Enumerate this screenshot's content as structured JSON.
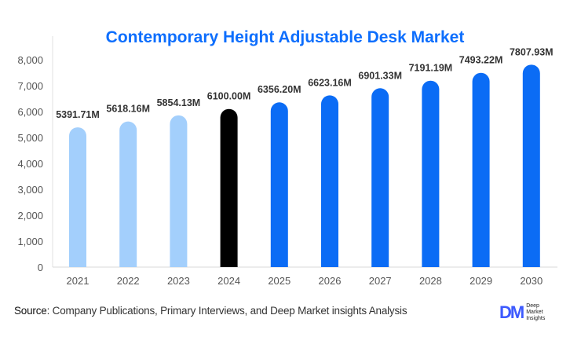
{
  "chart_data": {
    "type": "bar",
    "title": "Contemporary Height Adjustable Desk Market",
    "categories": [
      "2021",
      "2022",
      "2023",
      "2024",
      "2025",
      "2026",
      "2027",
      "2028",
      "2029",
      "2030"
    ],
    "values": [
      5391.71,
      5618.16,
      5854.13,
      6100.0,
      6356.2,
      6623.16,
      6901.33,
      7191.19,
      7493.22,
      7807.93
    ],
    "data_labels": [
      "5391.71M",
      "5618.16M",
      "5854.13M",
      "6100.00M",
      "6356.20M",
      "6623.16M",
      "6901.33M",
      "7191.19M",
      "7493.22M",
      "7807.93M"
    ],
    "ylim": [
      0,
      8000
    ],
    "yticks": [
      0,
      1000,
      2000,
      3000,
      4000,
      5000,
      6000,
      7000,
      8000
    ],
    "ytick_labels": [
      "0",
      "1,000",
      "2,000",
      "3,000",
      "4,000",
      "5,000",
      "6,000",
      "7,000",
      "8,000"
    ],
    "xlabel": "",
    "ylabel": "",
    "grid": false,
    "bar_colors": [
      "#a3cffc",
      "#a3cffc",
      "#a3cffc",
      "#000000",
      "#0b6cf5",
      "#0b6cf5",
      "#0b6cf5",
      "#0b6cf5",
      "#0b6cf5",
      "#0b6cf5"
    ]
  },
  "footer": {
    "source_label": "Source",
    "source_text": ": Company Publications, Primary Interviews, and Deep Market insights Analysis"
  },
  "logo": {
    "mark": "DM",
    "line1": "Deep",
    "line2": "Market",
    "line3": "Insights"
  }
}
